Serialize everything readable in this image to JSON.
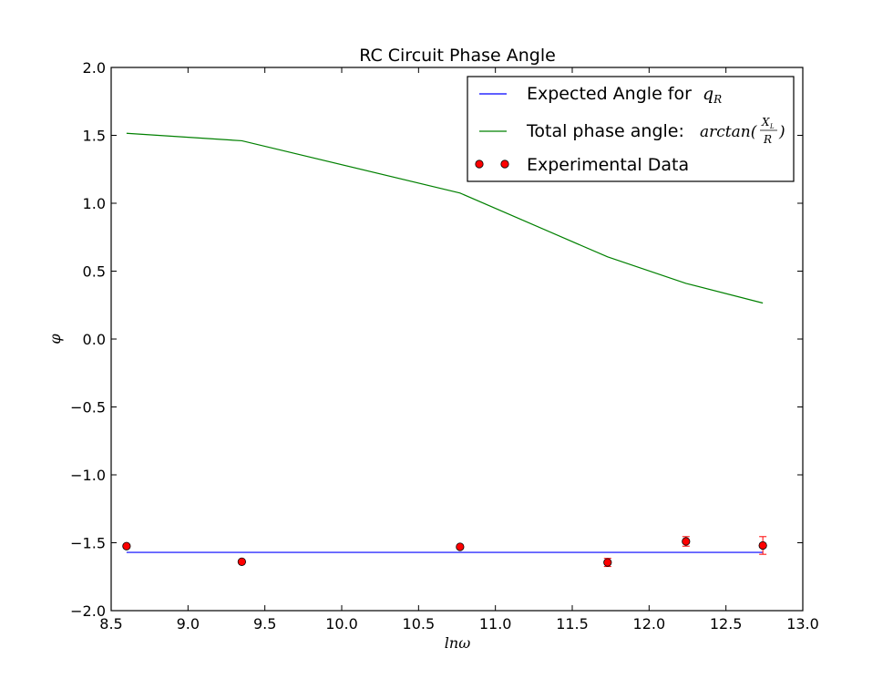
{
  "chart_data": {
    "type": "line",
    "title": "RC Circuit Phase Angle",
    "xlabel": "lnω",
    "ylabel": "φ",
    "xlim": [
      8.5,
      13.0
    ],
    "ylim": [
      -2.0,
      2.0
    ],
    "xticks": [
      "8.5",
      "9.0",
      "9.5",
      "10.0",
      "10.5",
      "11.0",
      "11.5",
      "12.0",
      "12.5",
      "13.0"
    ],
    "yticks": [
      "2.0",
      "1.5",
      "1.0",
      "0.5",
      "0.0",
      "−0.5",
      "−1.0",
      "−1.5",
      "−2.0"
    ],
    "legend_position": "top-right",
    "series": [
      {
        "name": "Expected Angle for",
        "name_math_base": "q",
        "name_math_sub": "R",
        "kind": "line",
        "color": "#0000ff",
        "x": [
          8.6,
          12.74
        ],
        "y": [
          -1.5708,
          -1.5708
        ]
      },
      {
        "name": "Total phase angle:",
        "name_math_fn": "arctan(",
        "name_math_num": "X",
        "name_math_num_sub": "L",
        "name_math_den": "R",
        "name_math_close": ")",
        "kind": "line",
        "color": "#008000",
        "x": [
          8.6,
          9.35,
          10.77,
          11.73,
          12.24,
          12.74
        ],
        "y": [
          1.515,
          1.46,
          1.075,
          0.605,
          0.41,
          0.265
        ]
      },
      {
        "name": "Experimental Data",
        "kind": "scatter",
        "color": "#ff0000",
        "errorbar_color": "#ff0000",
        "x": [
          8.6,
          9.35,
          10.77,
          11.73,
          12.24,
          12.74
        ],
        "y": [
          -1.525,
          -1.64,
          -1.53,
          -1.645,
          -1.49,
          -1.52
        ],
        "yerr": [
          0.005,
          0.005,
          0.01,
          0.03,
          0.035,
          0.065
        ]
      }
    ]
  }
}
